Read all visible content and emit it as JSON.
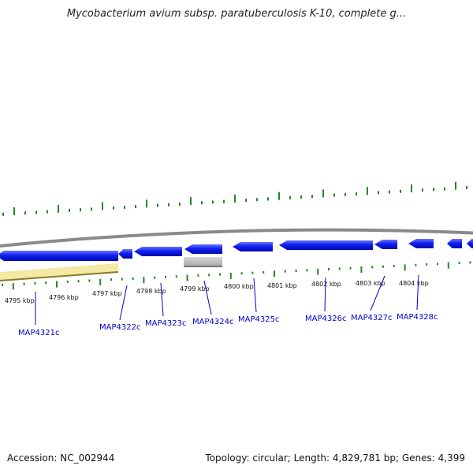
{
  "title": "Mycobacterium avium subsp. paratuberculosis K-10, complete g...",
  "footer": {
    "accession": "Accession: NC_002944",
    "summary": "Topology: circular; Length: 4,829,781 bp; Genes: 4,399"
  },
  "colors": {
    "gene_fill": "#0a14e6",
    "gene_highlight": "#5a66ff",
    "backbone": "#8a8a8a",
    "tick": "#1f8a1f",
    "feature_yellow": "#f3e9a2",
    "feature_gray": "#bdbdbd",
    "label": "#0000cc"
  },
  "coordinate_labels": [
    "4795 kbp",
    "4796 kbp",
    "4797 kbp",
    "4798 kbp",
    "4799 kbp",
    "4800 kbp",
    "4801 kbp",
    "4802 kbp",
    "4803 kbp",
    "4804 kbp"
  ],
  "genes": [
    {
      "name": "MAP4321c",
      "strand": "-"
    },
    {
      "name": "MAP4322c",
      "strand": "-"
    },
    {
      "name": "MAP4323c",
      "strand": "-"
    },
    {
      "name": "MAP4324c",
      "strand": "-"
    },
    {
      "name": "MAP4325c",
      "strand": "-"
    },
    {
      "name": "MAP4326c",
      "strand": "-"
    },
    {
      "name": "MAP4327c",
      "strand": "-"
    },
    {
      "name": "MAP4328c",
      "strand": "-"
    }
  ]
}
